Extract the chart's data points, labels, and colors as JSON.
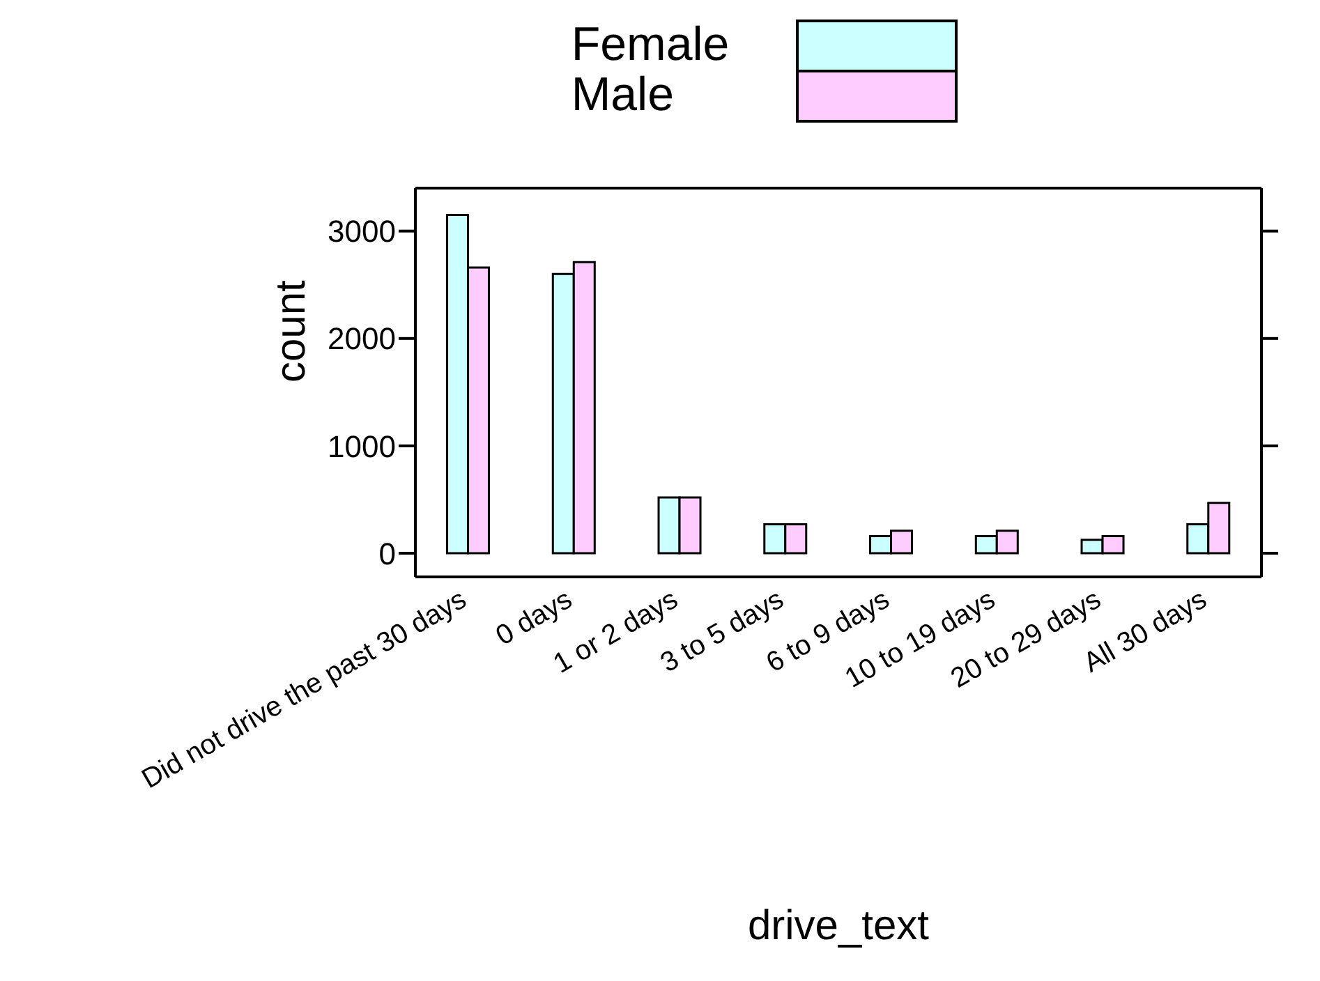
{
  "chart_data": {
    "type": "bar",
    "xlabel": "drive_text",
    "ylabel": "count",
    "categories": [
      "Did not drive the past 30 days",
      "0 days",
      "1 or 2 days",
      "3 to 5 days",
      "6 to 9 days",
      "10 to 19 days",
      "20 to 29 days",
      "All 30 days"
    ],
    "series": [
      {
        "name": "Female",
        "color": "#ccffff",
        "values": [
          3150,
          2600,
          520,
          270,
          160,
          160,
          125,
          270
        ]
      },
      {
        "name": "Male",
        "color": "#ffccff",
        "values": [
          2660,
          2710,
          520,
          270,
          210,
          210,
          160,
          470
        ]
      }
    ],
    "ylim": [
      -220,
      3400
    ],
    "yticks": [
      0,
      1000,
      2000,
      3000
    ],
    "grid": false,
    "legend": "top"
  }
}
